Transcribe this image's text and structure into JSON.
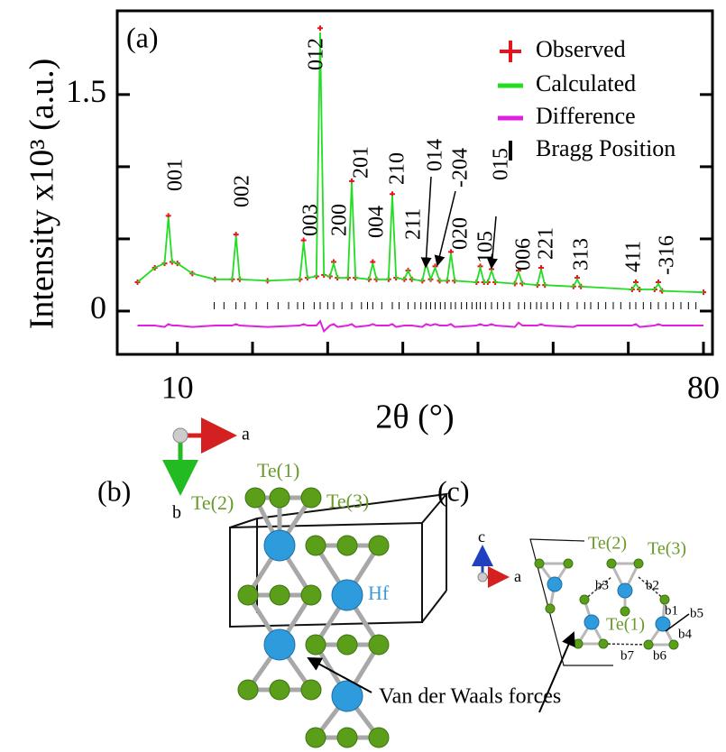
{
  "chart_data": {
    "type": "line",
    "panel_label": "(a)",
    "xlabel": "2θ (°)",
    "ylabel": "Intensity x10³ (a.u.)",
    "xlim": [
      2,
      81.2
    ],
    "ylim": [
      -0.3,
      2.08
    ],
    "xticks": [
      10,
      80
    ],
    "xminor_ticks": [
      20,
      30,
      40,
      50,
      60,
      70
    ],
    "yticks": [
      0,
      1.5
    ],
    "yminor_ticks": [
      0.5,
      1.0
    ],
    "x": [
      4.7,
      7,
      8.3,
      8.8,
      9.3,
      10,
      12,
      15,
      17.3,
      17.8,
      18.3,
      22,
      26.3,
      26.8,
      27.3,
      28.5,
      29.0,
      29.5,
      30.3,
      30.8,
      31.3,
      32.7,
      33.2,
      33.7,
      35.5,
      36.0,
      36.5,
      38.1,
      38.6,
      39.1,
      40.2,
      40.7,
      41.2,
      42.6,
      43.1,
      43.7,
      44.3,
      44.9,
      45.9,
      46.4,
      46.9,
      49.8,
      50.3,
      50.8,
      51.3,
      51.8,
      52.3,
      54.9,
      55.4,
      55.9,
      57.9,
      58.4,
      58.9,
      62.7,
      63.2,
      63.7,
      70.5,
      71.0,
      71.5,
      73.5,
      74.0,
      74.5,
      80
    ],
    "series": [
      {
        "name": "Observed",
        "color": "#e8141c",
        "values": [
          0.2,
          0.3,
          0.33,
          0.66,
          0.34,
          0.33,
          0.26,
          0.22,
          0.22,
          0.53,
          0.22,
          0.21,
          0.22,
          0.49,
          0.23,
          0.24,
          1.96,
          0.25,
          0.24,
          0.34,
          0.23,
          0.23,
          0.9,
          0.23,
          0.22,
          0.34,
          0.22,
          0.22,
          0.81,
          0.23,
          0.22,
          0.28,
          0.22,
          0.21,
          0.34,
          0.22,
          0.31,
          0.21,
          0.21,
          0.41,
          0.21,
          0.2,
          0.31,
          0.2,
          0.2,
          0.29,
          0.2,
          0.19,
          0.28,
          0.19,
          0.18,
          0.3,
          0.18,
          0.17,
          0.23,
          0.17,
          0.15,
          0.2,
          0.15,
          0.15,
          0.2,
          0.14,
          0.13
        ]
      },
      {
        "name": "Calculated",
        "color": "#22dd22",
        "values": [
          0.2,
          0.3,
          0.33,
          0.65,
          0.34,
          0.33,
          0.26,
          0.22,
          0.22,
          0.52,
          0.22,
          0.21,
          0.22,
          0.48,
          0.23,
          0.24,
          1.93,
          0.25,
          0.24,
          0.33,
          0.23,
          0.23,
          0.89,
          0.23,
          0.22,
          0.33,
          0.22,
          0.22,
          0.8,
          0.23,
          0.22,
          0.28,
          0.22,
          0.21,
          0.33,
          0.22,
          0.3,
          0.21,
          0.21,
          0.4,
          0.21,
          0.2,
          0.3,
          0.2,
          0.2,
          0.28,
          0.2,
          0.19,
          0.27,
          0.19,
          0.18,
          0.29,
          0.18,
          0.17,
          0.22,
          0.17,
          0.15,
          0.19,
          0.15,
          0.15,
          0.19,
          0.14,
          0.13
        ]
      },
      {
        "name": "Difference",
        "color": "#e020e0",
        "values": [
          -0.1,
          -0.1,
          -0.11,
          -0.09,
          -0.1,
          -0.1,
          -0.11,
          -0.1,
          -0.1,
          -0.09,
          -0.1,
          -0.11,
          -0.1,
          -0.09,
          -0.1,
          -0.1,
          -0.07,
          -0.14,
          -0.1,
          -0.09,
          -0.11,
          -0.1,
          -0.09,
          -0.11,
          -0.1,
          -0.09,
          -0.1,
          -0.1,
          -0.09,
          -0.11,
          -0.1,
          -0.1,
          -0.1,
          -0.11,
          -0.09,
          -0.1,
          -0.09,
          -0.1,
          -0.1,
          -0.09,
          -0.11,
          -0.1,
          -0.09,
          -0.1,
          -0.1,
          -0.09,
          -0.1,
          -0.11,
          -0.08,
          -0.1,
          -0.1,
          -0.09,
          -0.1,
          -0.11,
          -0.1,
          -0.1,
          -0.1,
          -0.09,
          -0.11,
          -0.1,
          -0.09,
          -0.1,
          -0.1
        ]
      }
    ],
    "bragg": {
      "name": "Bragg Position",
      "color": "#000000",
      "x": [
        14.9,
        16.2,
        17.8,
        19.0,
        20.5,
        22.0,
        23.4,
        24.8,
        26.0,
        26.8,
        28.2,
        29.0,
        30.0,
        30.8,
        31.9,
        33.2,
        34.5,
        35.3,
        36.0,
        37.2,
        38.6,
        39.5,
        40.7,
        41.6,
        42.4,
        43.1,
        43.7,
        44.3,
        45.0,
        45.6,
        46.4,
        47.0,
        47.8,
        48.5,
        49.2,
        49.8,
        50.3,
        51.0,
        51.8,
        52.6,
        53.4,
        54.2,
        55.4,
        56.2,
        57.0,
        57.8,
        58.4,
        59.2,
        60.0,
        61.0,
        62.0,
        63.2,
        64.2,
        65.0,
        66.0,
        67.0,
        68.0,
        69.0,
        70.2,
        71.0,
        72.0,
        73.0,
        74.0,
        75.0,
        76.0,
        77.0,
        78.0,
        79.0
      ]
    },
    "peak_labels": [
      "001",
      "002",
      "003",
      "012",
      "200",
      "201",
      "004",
      "210",
      "211",
      "014",
      "-204",
      "020",
      "105",
      "015",
      "006",
      "221",
      "313",
      "411",
      "-316"
    ]
  },
  "panel_b": {
    "label": "(b)",
    "axis_a": "a",
    "axis_b": "b",
    "te1": "Te(1)",
    "te2": "Te(2)",
    "te3": "Te(3)",
    "hf": "Hf",
    "vdw": "Van der Waals forces"
  },
  "panel_c": {
    "label": "(c)",
    "axis_c": "c",
    "axis_a": "a",
    "te2": "Te(2)",
    "te3": "Te(3)",
    "te1": "Te(1)",
    "bonds": [
      "b1",
      "b2",
      "b3",
      "b4",
      "b5",
      "b6",
      "b7"
    ]
  }
}
